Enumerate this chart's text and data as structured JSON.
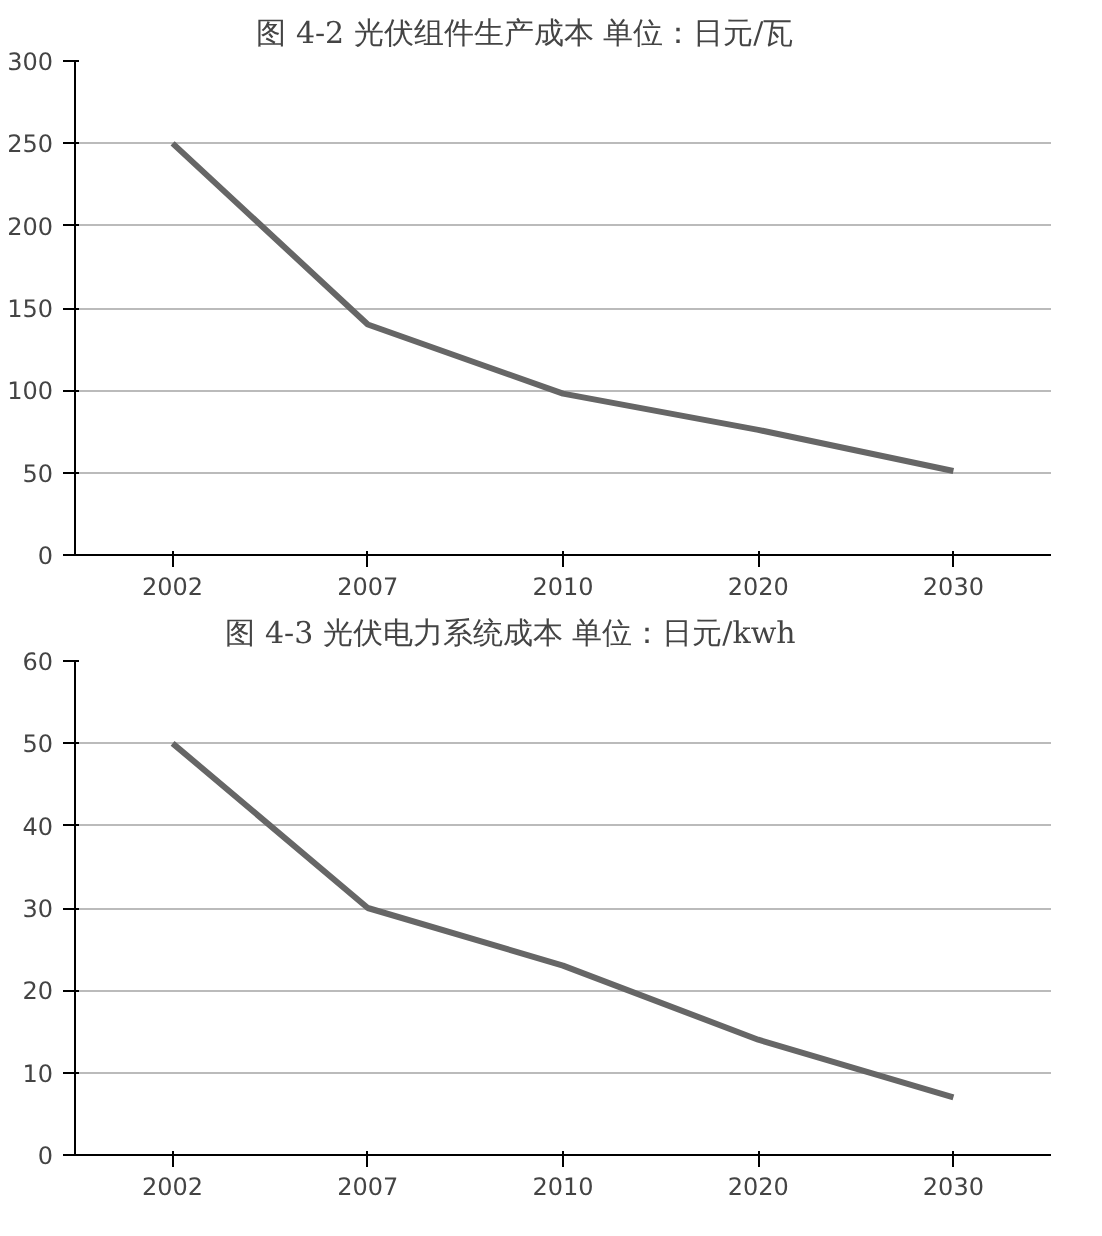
{
  "chart_data": [
    {
      "type": "line",
      "title": "图 4-2    光伏组件生产成本      单位：日元/瓦",
      "categories": [
        "2002",
        "2007",
        "2010",
        "2020",
        "2030"
      ],
      "series": [
        {
          "color": "#666666",
          "values": [
            250,
            140,
            98,
            76,
            51
          ]
        }
      ],
      "ylim": [
        0,
        300
      ],
      "yticks": [
        0,
        50,
        100,
        150,
        200,
        250,
        300
      ],
      "grid": "y",
      "line_style": "solid"
    },
    {
      "type": "line",
      "title": "图 4-3     光伏电力系统成本        单位：日元/kwh",
      "categories": [
        "2002",
        "2007",
        "2010",
        "2020",
        "2030"
      ],
      "series": [
        {
          "color": "#666666",
          "values": [
            50,
            30,
            23,
            14,
            7
          ]
        }
      ],
      "ylim": [
        0,
        60
      ],
      "yticks": [
        0,
        10,
        20,
        30,
        40,
        50,
        60
      ],
      "grid": "y",
      "line_style": "solid"
    }
  ]
}
